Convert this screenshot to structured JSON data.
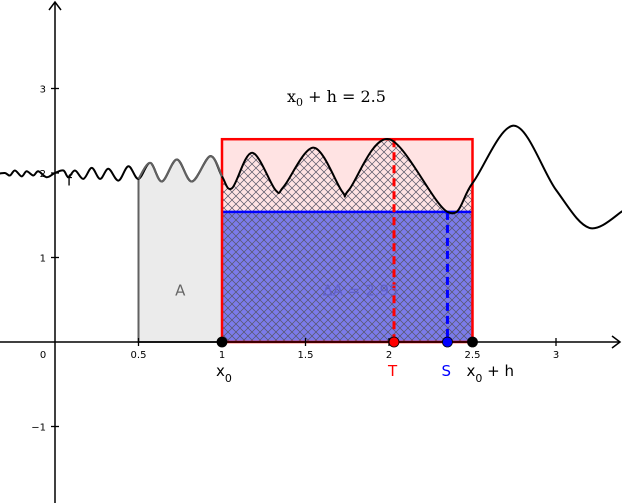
{
  "chart_data": {
    "type": "area",
    "xlim": [
      -0.64,
      3.4
    ],
    "ylim": [
      -1.9,
      4.0
    ],
    "x_ticks": [
      {
        "v": 0.5,
        "label": "0.5"
      },
      {
        "v": 1,
        "label": "1"
      },
      {
        "v": 1.5,
        "label": "1.5"
      },
      {
        "v": 2,
        "label": "2"
      },
      {
        "v": 2.5,
        "label": "2.5"
      },
      {
        "v": 3,
        "label": "3"
      }
    ],
    "y_ticks": [
      {
        "v": 1,
        "label": "1"
      },
      {
        "v": 2,
        "label": "2"
      },
      {
        "v": 3,
        "label": "3"
      },
      {
        "v": -1,
        "label": "−1"
      }
    ],
    "origin_label": "0",
    "formula": {
      "lhs": "x",
      "sub": "0",
      "rest": " + h = 2.5"
    },
    "function_label": "f",
    "region_A": {
      "label": "A",
      "x_from": 0.5,
      "x_to": 1
    },
    "region_delta": {
      "label": "ΔA = 2.95",
      "x_from": 1,
      "x_to": 2.5
    },
    "upper_rect": {
      "x_from": 1,
      "x_to": 2.5,
      "y_top": 2.4,
      "color": "#ff0000"
    },
    "lower_rect": {
      "x_from": 1,
      "x_to": 2.5,
      "y_top": 1.54,
      "color": "#0000ff"
    },
    "points": [
      {
        "name": "x0",
        "label": "x",
        "sub": "0",
        "suffix": "",
        "x": 1,
        "color": "#000000"
      },
      {
        "name": "T",
        "label": "T",
        "sub": "",
        "suffix": "",
        "x": 2.03,
        "y": 2.4,
        "color": "#ff0000"
      },
      {
        "name": "S",
        "label": "S",
        "sub": "",
        "suffix": "",
        "x": 2.35,
        "y": 1.54,
        "color": "#0000ff"
      },
      {
        "name": "x0h",
        "label": "x",
        "sub": "0",
        "suffix": " + h",
        "x": 2.5,
        "color": "#000000"
      }
    ],
    "curve": [
      [
        -0.64,
        2.0
      ],
      [
        -0.55,
        2.0
      ],
      [
        -0.45,
        1.98
      ],
      [
        -0.35,
        1.99
      ],
      [
        -0.3,
        2.0
      ],
      [
        -0.27,
        1.97
      ],
      [
        -0.24,
        2.03
      ],
      [
        -0.2,
        1.96
      ],
      [
        -0.17,
        2.02
      ],
      [
        -0.13,
        1.97
      ],
      [
        -0.1,
        2.02
      ],
      [
        -0.05,
        1.95
      ],
      [
        0.0,
        2.0
      ],
      [
        0.05,
        2.03
      ],
      [
        0.08,
        1.95
      ],
      [
        0.12,
        2.03
      ],
      [
        0.17,
        1.93
      ],
      [
        0.22,
        2.06
      ],
      [
        0.27,
        1.93
      ],
      [
        0.32,
        2.05
      ],
      [
        0.38,
        1.91
      ],
      [
        0.44,
        2.08
      ],
      [
        0.5,
        1.93
      ],
      [
        0.57,
        2.12
      ],
      [
        0.64,
        1.9
      ],
      [
        0.73,
        2.16
      ],
      [
        0.82,
        1.9
      ],
      [
        0.93,
        2.2
      ],
      [
        1.0,
        1.96
      ],
      [
        1.06,
        1.82
      ],
      [
        1.18,
        2.24
      ],
      [
        1.32,
        1.8
      ],
      [
        1.37,
        1.84
      ],
      [
        1.55,
        2.3
      ],
      [
        1.72,
        1.78
      ],
      [
        1.76,
        1.8
      ],
      [
        2.0,
        2.4
      ],
      [
        2.35,
        1.54
      ],
      [
        2.5,
        1.88
      ],
      [
        2.75,
        2.56
      ],
      [
        3.0,
        1.8
      ],
      [
        3.2,
        1.35
      ],
      [
        3.4,
        1.55
      ]
    ],
    "colors": {
      "curve": "#000000",
      "region_A_fill": "#ebebeb",
      "region_A_stroke": "#616161",
      "upper_fill": "#ffe3e3",
      "lower_fill": "#7b7bea",
      "hatch": "#555566",
      "axis": "#000000"
    }
  }
}
